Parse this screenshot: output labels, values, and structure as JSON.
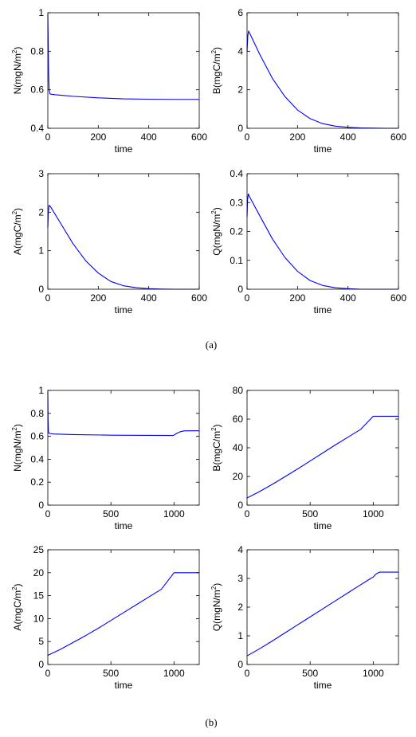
{
  "figure": {
    "caption_a": "(a)",
    "caption_b": "(b)",
    "line_color": "#0000ff"
  },
  "chart_data": [
    {
      "type": "line",
      "panel": "a",
      "xlabel": "time",
      "ylabel": "N(mgN/m",
      "ylabel_sup": "2",
      "ylabel_end": ")",
      "xlim": [
        0,
        600
      ],
      "ylim": [
        0.4,
        1.0
      ],
      "xticks": [
        0,
        200,
        400,
        600
      ],
      "xtick_labels": [
        "0",
        "200",
        "400",
        "600"
      ],
      "yticks": [
        0.4,
        0.6,
        0.8,
        1.0
      ],
      "ytick_labels": [
        "0.4",
        "0.6",
        "0.8",
        "1"
      ],
      "x": [
        0,
        1,
        3,
        5,
        8,
        12,
        30,
        50,
        100,
        200,
        300,
        400,
        500,
        600
      ],
      "y": [
        0.99,
        0.9,
        0.7,
        0.6,
        0.58,
        0.577,
        0.574,
        0.572,
        0.566,
        0.558,
        0.553,
        0.551,
        0.55,
        0.55
      ]
    },
    {
      "type": "line",
      "panel": "a",
      "xlabel": "time",
      "ylabel": "B(mgC/m",
      "ylabel_sup": "2",
      "ylabel_end": ")",
      "xlim": [
        0,
        600
      ],
      "ylim": [
        0,
        6
      ],
      "xticks": [
        0,
        200,
        400,
        600
      ],
      "xtick_labels": [
        "0",
        "200",
        "400",
        "600"
      ],
      "yticks": [
        0,
        2,
        4,
        6
      ],
      "ytick_labels": [
        "0",
        "2",
        "4",
        "6"
      ],
      "x": [
        0,
        3,
        6,
        10,
        50,
        100,
        150,
        200,
        250,
        300,
        350,
        400,
        450,
        500,
        550,
        600
      ],
      "y": [
        4.0,
        4.8,
        5.05,
        4.95,
        3.85,
        2.6,
        1.65,
        0.95,
        0.5,
        0.24,
        0.11,
        0.05,
        0.02,
        0.01,
        0.0,
        0.0
      ]
    },
    {
      "type": "line",
      "panel": "a",
      "xlabel": "time",
      "ylabel": "A(mgC/m",
      "ylabel_sup": "2",
      "ylabel_end": ")",
      "xlim": [
        0,
        600
      ],
      "ylim": [
        0,
        3
      ],
      "xticks": [
        0,
        200,
        400,
        600
      ],
      "xtick_labels": [
        "0",
        "200",
        "400",
        "600"
      ],
      "yticks": [
        0,
        1,
        2,
        3
      ],
      "ytick_labels": [
        "0",
        "1",
        "2",
        "3"
      ],
      "x": [
        0,
        2,
        5,
        10,
        50,
        100,
        150,
        200,
        250,
        300,
        350,
        400,
        450,
        500,
        600
      ],
      "y": [
        1.6,
        2.0,
        2.18,
        2.15,
        1.72,
        1.18,
        0.74,
        0.42,
        0.2,
        0.09,
        0.04,
        0.015,
        0.005,
        0.0,
        0.0
      ]
    },
    {
      "type": "line",
      "panel": "a",
      "xlabel": "time",
      "ylabel": "Q(mgN/m",
      "ylabel_sup": "2",
      "ylabel_end": ")",
      "xlim": [
        0,
        600
      ],
      "ylim": [
        0,
        0.4
      ],
      "xticks": [
        0,
        200,
        400,
        600
      ],
      "xtick_labels": [
        "0",
        "200",
        "400",
        "600"
      ],
      "yticks": [
        0,
        0.1,
        0.2,
        0.3,
        0.4
      ],
      "ytick_labels": [
        "0",
        "0.1",
        "0.2",
        "0.3",
        "0.4"
      ],
      "x": [
        0,
        2,
        5,
        10,
        50,
        100,
        150,
        200,
        250,
        300,
        350,
        400,
        450,
        500,
        600
      ],
      "y": [
        0.25,
        0.31,
        0.33,
        0.32,
        0.255,
        0.175,
        0.11,
        0.062,
        0.03,
        0.013,
        0.005,
        0.002,
        0.0,
        0.0,
        0.0
      ]
    },
    {
      "type": "line",
      "panel": "b",
      "xlabel": "time",
      "ylabel": "N(mgN/m",
      "ylabel_sup": "2",
      "ylabel_end": ")",
      "xlim": [
        0,
        1200
      ],
      "ylim": [
        0,
        1
      ],
      "xticks": [
        0,
        500,
        1000
      ],
      "xtick_labels": [
        "0",
        "500",
        "1000"
      ],
      "yticks": [
        0,
        0.2,
        0.4,
        0.6,
        0.8,
        1.0
      ],
      "ytick_labels": [
        "0",
        "0.2",
        "0.4",
        "0.6",
        "0.8",
        "1"
      ],
      "x": [
        0,
        2,
        5,
        10,
        50,
        200,
        500,
        800,
        990,
        1000,
        1020,
        1050,
        1080,
        1100,
        1200
      ],
      "y": [
        0.98,
        0.75,
        0.64,
        0.625,
        0.62,
        0.615,
        0.61,
        0.608,
        0.607,
        0.61,
        0.625,
        0.64,
        0.647,
        0.648,
        0.648
      ]
    },
    {
      "type": "line",
      "panel": "b",
      "xlabel": "time",
      "ylabel": "B(mgC/m",
      "ylabel_sup": "2",
      "ylabel_end": ")",
      "xlim": [
        0,
        1200
      ],
      "ylim": [
        0,
        80
      ],
      "xticks": [
        0,
        500,
        1000
      ],
      "xtick_labels": [
        "0",
        "500",
        "1000"
      ],
      "yticks": [
        0,
        20,
        40,
        60,
        80
      ],
      "ytick_labels": [
        "0",
        "20",
        "40",
        "60",
        "80"
      ],
      "x": [
        0,
        100,
        200,
        300,
        400,
        500,
        600,
        700,
        800,
        900,
        1000,
        1100,
        1200
      ],
      "y": [
        5,
        9.5,
        14.5,
        19.8,
        25.2,
        30.8,
        36.4,
        42,
        47.4,
        52.8,
        62,
        62,
        62
      ]
    },
    {
      "type": "line",
      "panel": "b",
      "xlabel": "time",
      "ylabel": "A(mgC/m",
      "ylabel_sup": "2",
      "ylabel_end": ")",
      "xlim": [
        0,
        1200
      ],
      "ylim": [
        0,
        25
      ],
      "xticks": [
        0,
        500,
        1000
      ],
      "xtick_labels": [
        "0",
        "500",
        "1000"
      ],
      "yticks": [
        0,
        5,
        10,
        15,
        20,
        25
      ],
      "ytick_labels": [
        "0",
        "5",
        "10",
        "15",
        "20",
        "25"
      ],
      "x": [
        0,
        100,
        200,
        300,
        400,
        500,
        600,
        700,
        800,
        900,
        1000,
        1100,
        1200
      ],
      "y": [
        2,
        3.3,
        4.8,
        6.3,
        7.9,
        9.6,
        11.3,
        13.0,
        14.7,
        16.4,
        20,
        20,
        20
      ]
    },
    {
      "type": "line",
      "panel": "b",
      "xlabel": "time",
      "ylabel": "Q(mgN/m",
      "ylabel_sup": "2",
      "ylabel_end": ")",
      "xlim": [
        0,
        1200
      ],
      "ylim": [
        0,
        4
      ],
      "xticks": [
        0,
        500,
        1000
      ],
      "xtick_labels": [
        "0",
        "500",
        "1000"
      ],
      "yticks": [
        0,
        1,
        2,
        3,
        4
      ],
      "ytick_labels": [
        "0",
        "1",
        "2",
        "3",
        "4"
      ],
      "x": [
        0,
        100,
        200,
        300,
        400,
        500,
        600,
        700,
        800,
        900,
        980,
        1000,
        1020,
        1050,
        1100,
        1200
      ],
      "y": [
        0.3,
        0.55,
        0.82,
        1.1,
        1.38,
        1.66,
        1.94,
        2.22,
        2.5,
        2.78,
        3.0,
        3.05,
        3.15,
        3.22,
        3.22,
        3.22
      ]
    }
  ]
}
